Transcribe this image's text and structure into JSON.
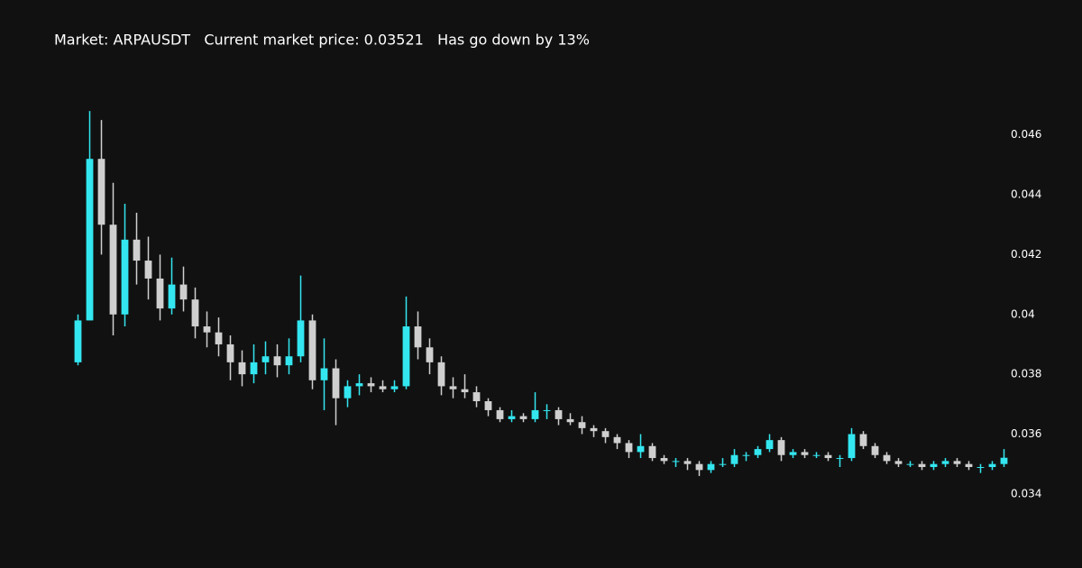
{
  "chart_data": {
    "type": "candlestick",
    "title": "Market: ARPAUSDT   Current market price: 0.03521   Has go down by 13%",
    "increasing_color": "#33e6f0",
    "decreasing_color": "#cfcfcf",
    "ylim": [
      0.0327,
      0.0481
    ],
    "yticks": [
      0.034,
      0.036,
      0.038,
      0.04,
      0.042,
      0.044,
      0.046
    ],
    "open": [
      0.0384,
      0.0398,
      0.0452,
      0.043,
      0.04,
      0.0425,
      0.0418,
      0.0412,
      0.0402,
      0.041,
      0.0405,
      0.0396,
      0.0394,
      0.039,
      0.0384,
      0.038,
      0.0384,
      0.0386,
      0.0383,
      0.0386,
      0.0398,
      0.0378,
      0.0382,
      0.0372,
      0.0376,
      0.0377,
      0.0376,
      0.0375,
      0.0376,
      0.0396,
      0.0389,
      0.0384,
      0.0376,
      0.0375,
      0.0374,
      0.0371,
      0.0368,
      0.0365,
      0.0366,
      0.0365,
      0.0368,
      0.0368,
      0.0365,
      0.0364,
      0.0362,
      0.0361,
      0.0359,
      0.0357,
      0.0354,
      0.0356,
      0.0352,
      0.0351,
      0.0351,
      0.035,
      0.0348,
      0.035,
      0.035,
      0.0353,
      0.0353,
      0.0355,
      0.0358,
      0.0353,
      0.0354,
      0.0353,
      0.0353,
      0.0352,
      0.0352,
      0.036,
      0.0356,
      0.0353,
      0.0351,
      0.035,
      0.035,
      0.0349,
      0.035,
      0.0351,
      0.035,
      0.0349,
      0.0349,
      0.035
    ],
    "high": [
      0.04,
      0.0468,
      0.0465,
      0.0444,
      0.0437,
      0.0434,
      0.0426,
      0.042,
      0.0419,
      0.0416,
      0.0409,
      0.0401,
      0.0399,
      0.0393,
      0.0388,
      0.039,
      0.0391,
      0.039,
      0.0392,
      0.0413,
      0.04,
      0.0392,
      0.0385,
      0.0378,
      0.038,
      0.0379,
      0.0378,
      0.0378,
      0.0406,
      0.0401,
      0.0392,
      0.0386,
      0.0379,
      0.038,
      0.0376,
      0.0372,
      0.0369,
      0.0368,
      0.0367,
      0.0374,
      0.037,
      0.0369,
      0.0367,
      0.0366,
      0.0363,
      0.0362,
      0.036,
      0.0358,
      0.036,
      0.0357,
      0.0353,
      0.0352,
      0.0352,
      0.0351,
      0.0351,
      0.0352,
      0.0355,
      0.0354,
      0.0356,
      0.036,
      0.0359,
      0.0355,
      0.0355,
      0.0354,
      0.0354,
      0.0353,
      0.0362,
      0.0361,
      0.0357,
      0.0354,
      0.0352,
      0.0351,
      0.0351,
      0.0351,
      0.0352,
      0.0352,
      0.0351,
      0.035,
      0.0351,
      0.0355
    ],
    "low": [
      0.0383,
      0.0398,
      0.042,
      0.0393,
      0.0396,
      0.041,
      0.0405,
      0.0398,
      0.04,
      0.0401,
      0.0392,
      0.0389,
      0.0386,
      0.0378,
      0.0376,
      0.0377,
      0.038,
      0.0379,
      0.038,
      0.0384,
      0.0375,
      0.0368,
      0.0363,
      0.0369,
      0.0373,
      0.0374,
      0.0374,
      0.0374,
      0.0375,
      0.0385,
      0.038,
      0.0373,
      0.0372,
      0.0372,
      0.0369,
      0.0366,
      0.0364,
      0.0364,
      0.0364,
      0.0364,
      0.0365,
      0.0363,
      0.0363,
      0.036,
      0.0359,
      0.0357,
      0.0355,
      0.0352,
      0.0352,
      0.0351,
      0.035,
      0.0349,
      0.0348,
      0.0346,
      0.0347,
      0.0349,
      0.0349,
      0.0351,
      0.0352,
      0.0354,
      0.0351,
      0.0352,
      0.0352,
      0.0352,
      0.0351,
      0.0349,
      0.0351,
      0.0355,
      0.0352,
      0.035,
      0.0349,
      0.0349,
      0.0348,
      0.0348,
      0.0349,
      0.0349,
      0.0348,
      0.0347,
      0.0348,
      0.0349
    ],
    "close": [
      0.0398,
      0.0452,
      0.043,
      0.04,
      0.0425,
      0.0418,
      0.0412,
      0.0402,
      0.041,
      0.0405,
      0.0396,
      0.0394,
      0.039,
      0.0384,
      0.038,
      0.0384,
      0.0386,
      0.0383,
      0.0386,
      0.0398,
      0.0378,
      0.0382,
      0.0372,
      0.0376,
      0.0377,
      0.0376,
      0.0375,
      0.0376,
      0.0396,
      0.0389,
      0.0384,
      0.0376,
      0.0375,
      0.0374,
      0.0371,
      0.0368,
      0.0365,
      0.0366,
      0.0365,
      0.0368,
      0.0368,
      0.0365,
      0.0364,
      0.0362,
      0.0361,
      0.0359,
      0.0357,
      0.0354,
      0.0356,
      0.0352,
      0.0351,
      0.0351,
      0.035,
      0.0348,
      0.035,
      0.035,
      0.0353,
      0.0353,
      0.0355,
      0.0358,
      0.0353,
      0.0354,
      0.0353,
      0.0353,
      0.0352,
      0.0352,
      0.036,
      0.0356,
      0.0353,
      0.0351,
      0.035,
      0.035,
      0.0349,
      0.035,
      0.0351,
      0.035,
      0.0349,
      0.0349,
      0.035,
      0.03521
    ]
  }
}
